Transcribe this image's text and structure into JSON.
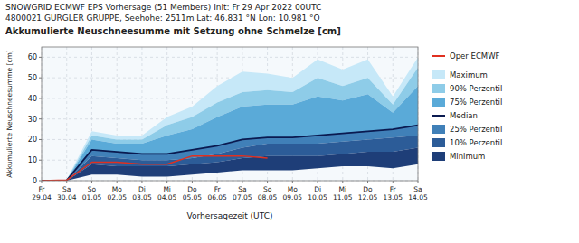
{
  "chart_data": {
    "type": "area",
    "subtitle": [
      "SNOWGRID ECMWF EPS Vorhersage (51 Members) Init: Fr 29 Apr 2022 00UTC",
      "4800021  GURGLER GRUPPE, Seehohe: 2511m Lat: 46.831 °N Lon: 10.981 °O"
    ],
    "title": "Akkumulierte Neuschneesumme mit Setzung ohne Schmelze [cm]",
    "x_label": "Vorhersagezeit (UTC)",
    "y_label": "Akkumulierte Neuschneesumme [cm]",
    "categories": [
      "Fr\n29.04",
      "Sa\n30.04",
      "So\n01.05",
      "Mo\n02.05",
      "Di\n03.05",
      "Mi\n04.05",
      "Do\n05.05",
      "Fr\n06.05",
      "Sa\n07.05",
      "So\n08.05",
      "Mo\n09.05",
      "Di\n10.05",
      "Mi\n11.05",
      "Do\n12.05",
      "Fr\n13.05",
      "Sa\n14.05"
    ],
    "ylim": [
      0,
      65
    ],
    "yticks": [
      0,
      10,
      20,
      30,
      40,
      50,
      60
    ],
    "grid": true,
    "legend": "right",
    "series": [
      {
        "name": "Oper ECMWF",
        "type": "line",
        "color": "#e03020",
        "values": [
          0,
          0.3,
          9,
          9,
          8,
          8,
          12,
          12,
          12,
          11,
          null,
          null,
          null,
          null,
          null,
          null
        ]
      },
      {
        "name": "Maximum",
        "type": "area",
        "color": "#c6e8f8",
        "values": [
          0,
          0.5,
          24,
          22,
          22,
          31,
          36,
          46,
          53,
          52,
          50,
          59,
          54,
          59,
          41,
          60
        ]
      },
      {
        "name": "90% Perzentil",
        "type": "area",
        "color": "#8ecce8",
        "values": [
          0,
          0.4,
          22,
          20,
          20,
          27,
          31,
          38,
          43,
          44,
          43,
          50,
          46,
          50,
          37,
          55
        ]
      },
      {
        "name": "75% Perzentil",
        "type": "area",
        "color": "#5aaad8",
        "values": [
          0,
          0.3,
          20,
          18,
          18,
          22,
          25,
          31,
          36,
          37,
          37,
          41,
          39,
          42,
          33,
          46
        ]
      },
      {
        "name": "Median",
        "type": "line",
        "color": "#0a1a50",
        "values": [
          0,
          0.2,
          15,
          14,
          13,
          13,
          15,
          17,
          20,
          21,
          21,
          22,
          23,
          24,
          25,
          27
        ]
      },
      {
        "name": "25% Perzentil",
        "type": "area",
        "color": "#4080b8",
        "values": [
          0,
          0.1,
          12,
          11,
          10,
          10,
          11,
          13,
          16,
          18,
          18,
          18,
          19,
          20,
          21,
          22
        ]
      },
      {
        "name": "10% Perzentil",
        "type": "area",
        "color": "#2c5c98",
        "values": [
          0,
          0.05,
          8,
          7,
          7,
          7,
          8,
          9,
          11,
          12,
          12,
          12,
          13,
          14,
          14,
          16
        ]
      },
      {
        "name": "Minimum",
        "type": "area",
        "color": "#1e3e78",
        "values": [
          0,
          0.0,
          3,
          3,
          2,
          2,
          3,
          4,
          5,
          5,
          5,
          6,
          7,
          7,
          6,
          8
        ]
      }
    ]
  }
}
